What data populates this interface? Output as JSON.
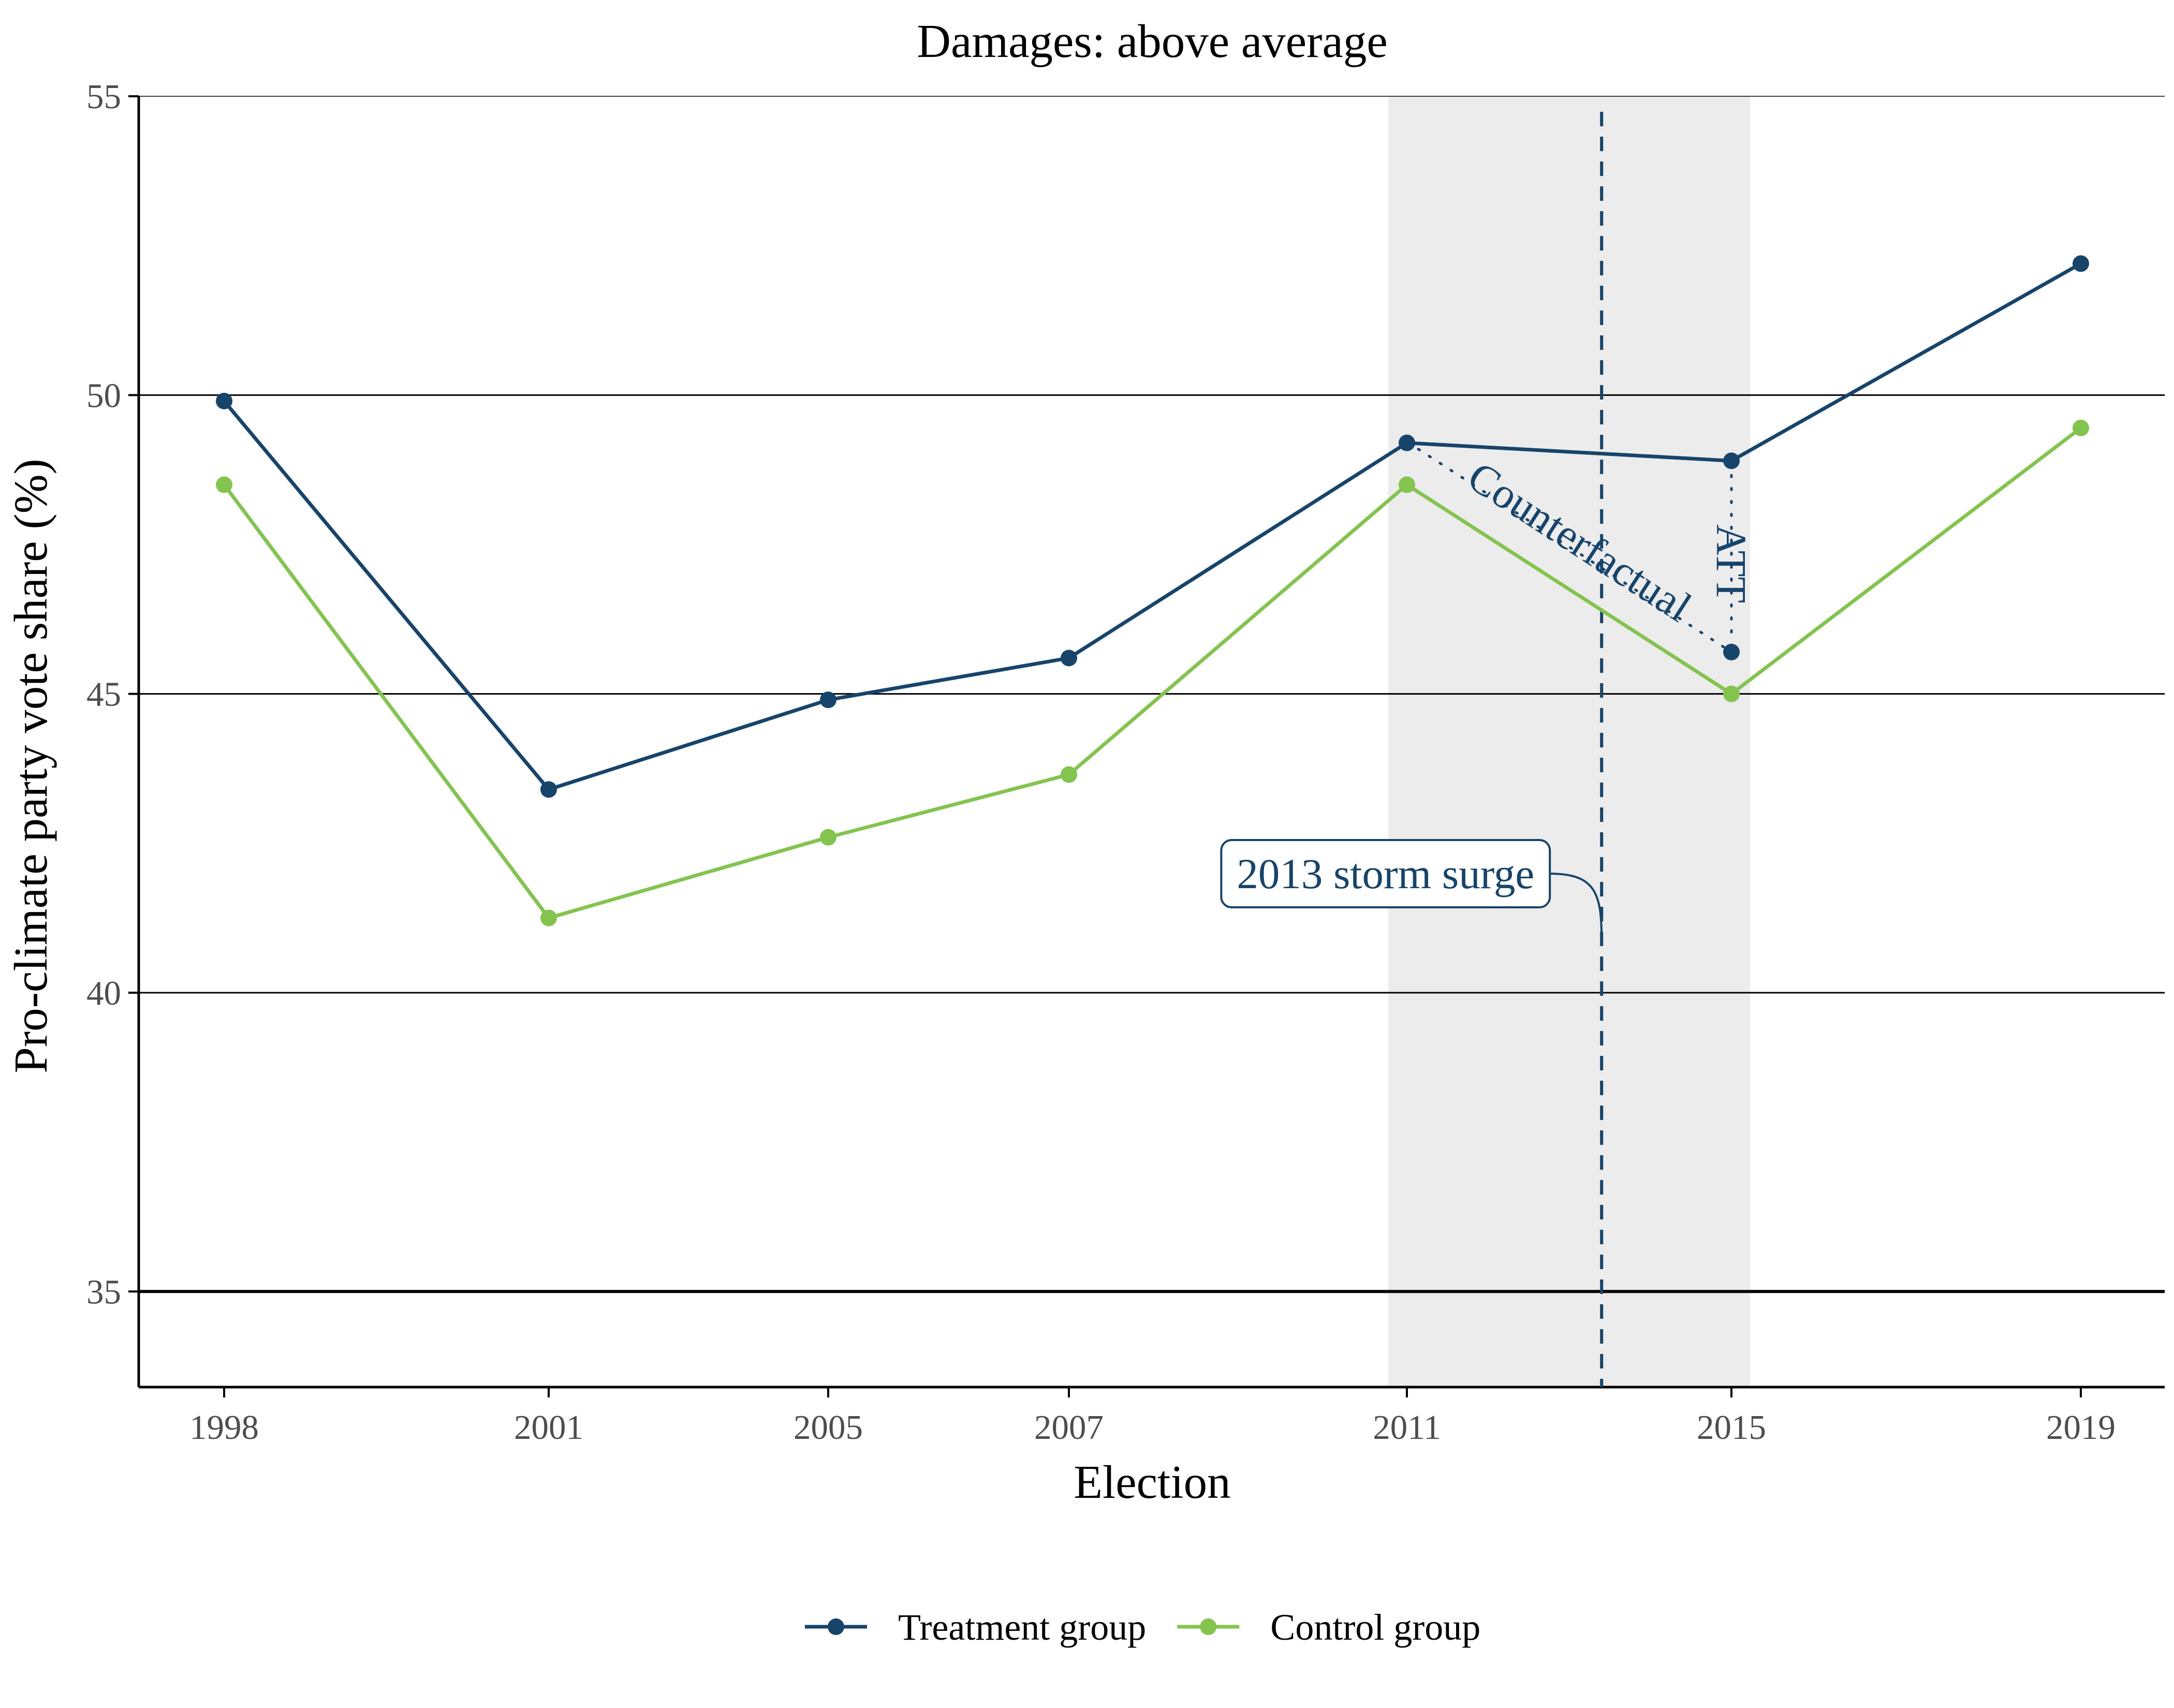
{
  "chart_data": {
    "type": "line",
    "title": "Damages: above average",
    "xlabel": "Election",
    "ylabel": "Pro-climate party vote share (%)",
    "categories": [
      "1998",
      "2001",
      "2005",
      "2007",
      "2011",
      "2015",
      "2019"
    ],
    "ylim": [
      33.4,
      55
    ],
    "yticks": [
      35,
      40,
      45,
      50,
      55
    ],
    "grid": "horizontal",
    "legend_position": "bottom",
    "series": [
      {
        "name": "Treatment group",
        "color": "#17446b",
        "values": [
          49.9,
          43.4,
          44.9,
          45.6,
          49.2,
          48.9,
          52.2
        ]
      },
      {
        "name": "Control group",
        "color": "#82c44e",
        "values": [
          48.5,
          41.25,
          42.6,
          43.65,
          48.5,
          45.0,
          49.45
        ]
      }
    ],
    "counterfactual": {
      "label": "Counterfactual",
      "x": "2015",
      "value": 45.7
    },
    "att_label": "ATT",
    "event": {
      "label": "2013 storm surge",
      "x_position_between": [
        "2011",
        "2015"
      ],
      "fraction": 0.6
    },
    "shaded_period": [
      "2011",
      "2015"
    ],
    "annotation_color": "#17446b"
  }
}
